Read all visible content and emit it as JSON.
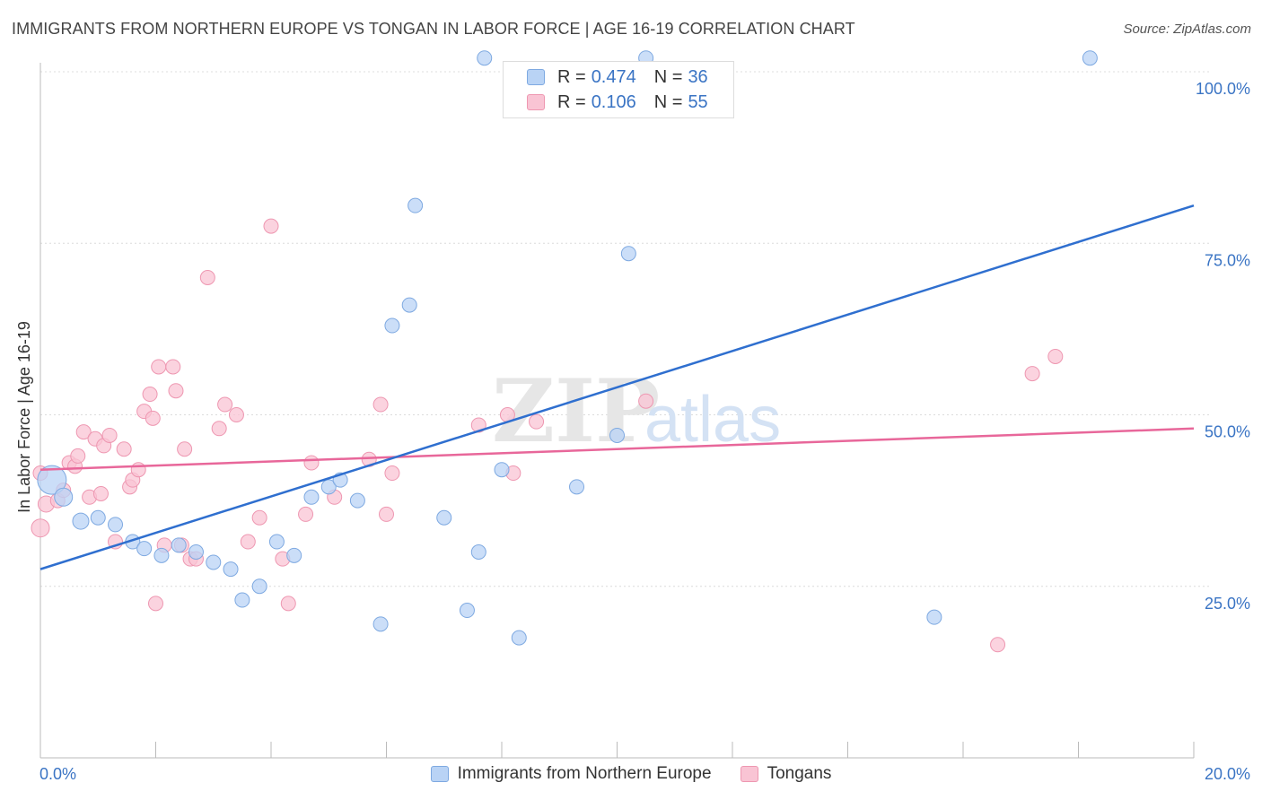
{
  "title": "IMMIGRANTS FROM NORTHERN EUROPE VS TONGAN IN LABOR FORCE | AGE 16-19 CORRELATION CHART",
  "source": "Source: ZipAtlas.com",
  "watermark": {
    "zip": "ZIP",
    "atlas": "atlas"
  },
  "legend": {
    "r_label": "R =",
    "n_label": "N =",
    "series1": {
      "r": "0.474",
      "n": "36"
    },
    "series2": {
      "r": "0.106",
      "n": "55"
    }
  },
  "colors": {
    "series1_fill": "#b9d3f5",
    "series1_stroke": "#7ea9e1",
    "series1_line": "#2f6fcf",
    "series2_fill": "#f9c4d4",
    "series2_stroke": "#ee97b1",
    "series2_line": "#e8679a",
    "tick_label": "#3a74c4"
  },
  "chart_data": {
    "type": "scatter",
    "title": "IMMIGRANTS FROM NORTHERN EUROPE VS TONGAN IN LABOR FORCE | AGE 16-19 CORRELATION CHART",
    "xlabel": "",
    "ylabel": "In Labor Force | Age 16-19",
    "xlim": [
      0,
      20
    ],
    "ylim": [
      0,
      105
    ],
    "x_tick_labels": [
      "0.0%",
      "20.0%"
    ],
    "y_ticks": [
      25,
      50,
      75,
      100
    ],
    "y_tick_labels": [
      "25.0%",
      "50.0%",
      "75.0%",
      "100.0%"
    ],
    "grid": true,
    "series": [
      {
        "name": "Immigrants from Northern Europe",
        "r": 0.474,
        "n": 36,
        "trend": {
          "x": [
            0,
            20
          ],
          "y": [
            27.5,
            80.5
          ]
        },
        "points": [
          {
            "x": 0.2,
            "y": 40.5,
            "s": 16
          },
          {
            "x": 0.4,
            "y": 38,
            "s": 10
          },
          {
            "x": 0.7,
            "y": 34.5,
            "s": 9
          },
          {
            "x": 1.0,
            "y": 35,
            "s": 8
          },
          {
            "x": 1.3,
            "y": 34,
            "s": 8
          },
          {
            "x": 1.6,
            "y": 31.5,
            "s": 8
          },
          {
            "x": 1.8,
            "y": 30.5,
            "s": 8
          },
          {
            "x": 2.1,
            "y": 29.5,
            "s": 8
          },
          {
            "x": 2.4,
            "y": 31,
            "s": 8
          },
          {
            "x": 2.7,
            "y": 30,
            "s": 8
          },
          {
            "x": 3.0,
            "y": 28.5,
            "s": 8
          },
          {
            "x": 3.3,
            "y": 27.5,
            "s": 8
          },
          {
            "x": 3.5,
            "y": 23,
            "s": 8
          },
          {
            "x": 3.8,
            "y": 25,
            "s": 8
          },
          {
            "x": 4.1,
            "y": 31.5,
            "s": 8
          },
          {
            "x": 4.4,
            "y": 29.5,
            "s": 8
          },
          {
            "x": 4.7,
            "y": 38,
            "s": 8
          },
          {
            "x": 5.0,
            "y": 39.5,
            "s": 8
          },
          {
            "x": 5.2,
            "y": 40.5,
            "s": 8
          },
          {
            "x": 5.5,
            "y": 37.5,
            "s": 8
          },
          {
            "x": 5.9,
            "y": 19.5,
            "s": 8
          },
          {
            "x": 6.1,
            "y": 63,
            "s": 8
          },
          {
            "x": 6.4,
            "y": 66,
            "s": 8
          },
          {
            "x": 6.5,
            "y": 80.5,
            "s": 8
          },
          {
            "x": 7.0,
            "y": 35,
            "s": 8
          },
          {
            "x": 7.4,
            "y": 21.5,
            "s": 8
          },
          {
            "x": 7.6,
            "y": 30,
            "s": 8
          },
          {
            "x": 7.7,
            "y": 102,
            "s": 8
          },
          {
            "x": 8.0,
            "y": 42,
            "s": 8
          },
          {
            "x": 8.3,
            "y": 17.5,
            "s": 8
          },
          {
            "x": 9.3,
            "y": 39.5,
            "s": 8
          },
          {
            "x": 10.0,
            "y": 47,
            "s": 8
          },
          {
            "x": 10.2,
            "y": 73.5,
            "s": 8
          },
          {
            "x": 10.5,
            "y": 102,
            "s": 8
          },
          {
            "x": 15.5,
            "y": 20.5,
            "s": 8
          },
          {
            "x": 18.2,
            "y": 102,
            "s": 8
          }
        ]
      },
      {
        "name": "Tongans",
        "r": 0.106,
        "n": 55,
        "trend": {
          "x": [
            0,
            20
          ],
          "y": [
            42,
            48
          ]
        },
        "points": [
          {
            "x": 0.0,
            "y": 33.5,
            "s": 10
          },
          {
            "x": 0.1,
            "y": 37,
            "s": 9
          },
          {
            "x": 0.3,
            "y": 37.5,
            "s": 8
          },
          {
            "x": 0.4,
            "y": 39,
            "s": 8
          },
          {
            "x": 0.5,
            "y": 43,
            "s": 8
          },
          {
            "x": 0.6,
            "y": 42.5,
            "s": 8
          },
          {
            "x": 0.65,
            "y": 44,
            "s": 8
          },
          {
            "x": 0.75,
            "y": 47.5,
            "s": 8
          },
          {
            "x": 0.85,
            "y": 38,
            "s": 8
          },
          {
            "x": 0.95,
            "y": 46.5,
            "s": 8
          },
          {
            "x": 1.05,
            "y": 38.5,
            "s": 8
          },
          {
            "x": 1.1,
            "y": 45.5,
            "s": 8
          },
          {
            "x": 1.2,
            "y": 47,
            "s": 8
          },
          {
            "x": 1.3,
            "y": 31.5,
            "s": 8
          },
          {
            "x": 1.45,
            "y": 45,
            "s": 8
          },
          {
            "x": 1.55,
            "y": 39.5,
            "s": 8
          },
          {
            "x": 1.6,
            "y": 40.5,
            "s": 8
          },
          {
            "x": 1.7,
            "y": 42,
            "s": 8
          },
          {
            "x": 1.8,
            "y": 50.5,
            "s": 8
          },
          {
            "x": 1.9,
            "y": 53,
            "s": 8
          },
          {
            "x": 1.95,
            "y": 49.5,
            "s": 8
          },
          {
            "x": 2.0,
            "y": 22.5,
            "s": 8
          },
          {
            "x": 2.05,
            "y": 57,
            "s": 8
          },
          {
            "x": 2.15,
            "y": 31,
            "s": 8
          },
          {
            "x": 2.3,
            "y": 57,
            "s": 8
          },
          {
            "x": 2.35,
            "y": 53.5,
            "s": 8
          },
          {
            "x": 2.45,
            "y": 31,
            "s": 8
          },
          {
            "x": 2.5,
            "y": 45,
            "s": 8
          },
          {
            "x": 2.6,
            "y": 29,
            "s": 8
          },
          {
            "x": 2.7,
            "y": 29,
            "s": 8
          },
          {
            "x": 2.9,
            "y": 70,
            "s": 8
          },
          {
            "x": 3.1,
            "y": 48,
            "s": 8
          },
          {
            "x": 3.2,
            "y": 51.5,
            "s": 8
          },
          {
            "x": 3.4,
            "y": 50,
            "s": 8
          },
          {
            "x": 3.6,
            "y": 31.5,
            "s": 8
          },
          {
            "x": 3.8,
            "y": 35,
            "s": 8
          },
          {
            "x": 4.0,
            "y": 77.5,
            "s": 8
          },
          {
            "x": 4.2,
            "y": 29,
            "s": 8
          },
          {
            "x": 4.3,
            "y": 22.5,
            "s": 8
          },
          {
            "x": 4.6,
            "y": 35.5,
            "s": 8
          },
          {
            "x": 4.7,
            "y": 43,
            "s": 8
          },
          {
            "x": 5.1,
            "y": 38,
            "s": 8
          },
          {
            "x": 5.7,
            "y": 43.5,
            "s": 8
          },
          {
            "x": 5.9,
            "y": 51.5,
            "s": 8
          },
          {
            "x": 6.0,
            "y": 35.5,
            "s": 8
          },
          {
            "x": 6.1,
            "y": 41.5,
            "s": 8
          },
          {
            "x": 7.6,
            "y": 48.5,
            "s": 8
          },
          {
            "x": 8.1,
            "y": 50,
            "s": 8
          },
          {
            "x": 8.2,
            "y": 41.5,
            "s": 8
          },
          {
            "x": 8.6,
            "y": 49,
            "s": 8
          },
          {
            "x": 10.5,
            "y": 52,
            "s": 8
          },
          {
            "x": 16.6,
            "y": 16.5,
            "s": 8
          },
          {
            "x": 17.2,
            "y": 56,
            "s": 8
          },
          {
            "x": 17.6,
            "y": 58.5,
            "s": 8
          },
          {
            "x": 0.0,
            "y": 41.5,
            "s": 8
          }
        ]
      }
    ]
  }
}
